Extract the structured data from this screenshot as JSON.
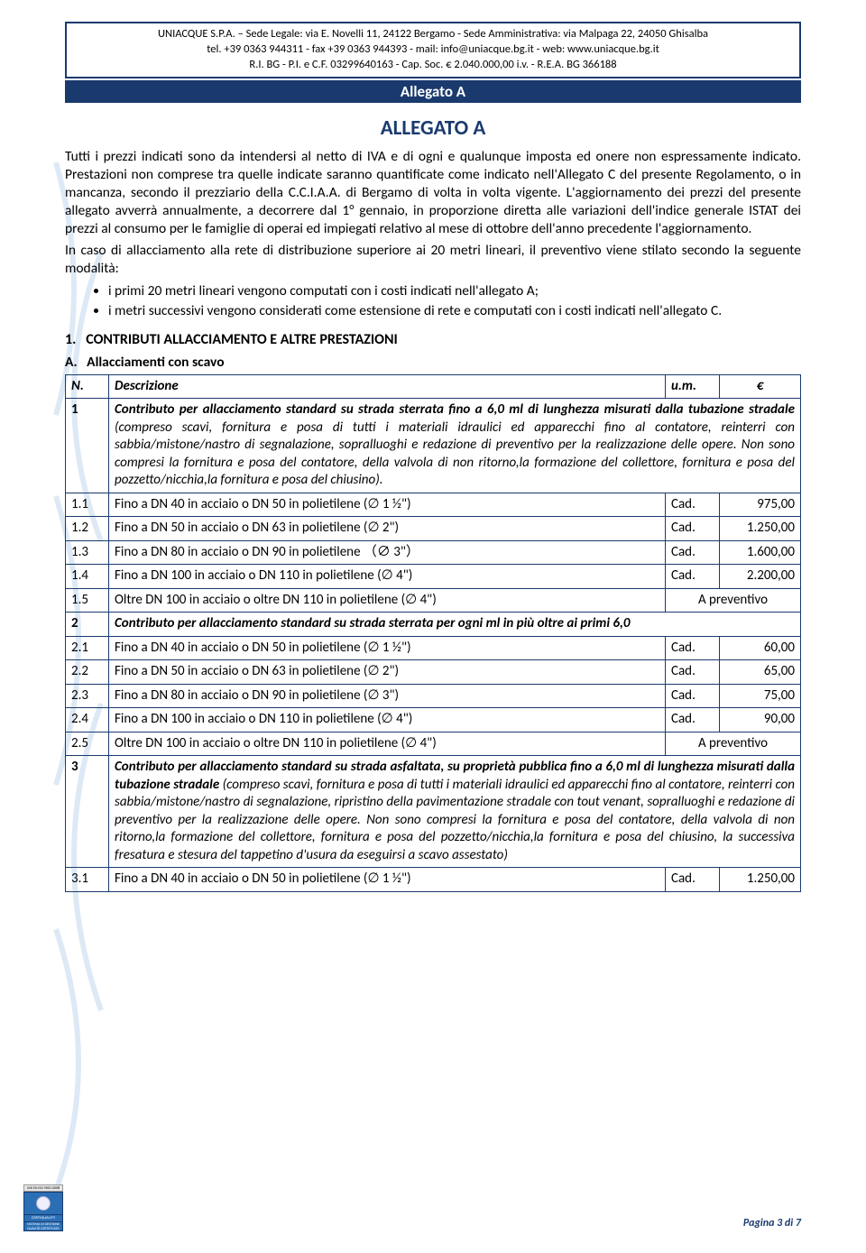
{
  "header": {
    "line1": "UNIACQUE S.P.A. – Sede Legale: via E. Novelli 11, 24122 Bergamo - Sede Amministrativa: via Malpaga 22, 24050 Ghisalba",
    "line2": "tel. +39 0363 944311 - fax +39 0363 944393 - mail: info@uniacque.bg.it - web: www.uniacque.bg.it",
    "line3": "R.I. BG - P.I. e C.F. 03299640163 - Cap. Soc. € 2.040.000,00 i.v. - R.E.A. BG 366188"
  },
  "banner": "Allegato A",
  "title": "ALLEGATO A",
  "para1": "Tutti i prezzi indicati sono da intendersi al netto di IVA e di ogni e qualunque imposta ed onere non espressamente indicato. Prestazioni non comprese tra quelle indicate saranno quantificate come indicato nell'Allegato C del presente Regolamento, o in mancanza, secondo il prezziario della C.C.I.A.A. di Bergamo di volta in volta vigente. L'aggiornamento dei prezzi del presente allegato avverrà annualmente, a decorrere dal 1° gennaio, in proporzione diretta alle variazioni dell'indice generale ISTAT dei prezzi al consumo per le famiglie di operai ed impiegati relativo al mese di ottobre dell'anno precedente l'aggiornamento.",
  "para2": "In caso di allacciamento alla rete di distribuzione superiore ai 20 metri lineari, il preventivo viene stilato secondo la seguente modalità:",
  "bullets": [
    "i primi 20 metri lineari vengono computati con i costi indicati nell'allegato A;",
    "i metri successivi vengono considerati come estensione di rete e computati con i costi indicati nell'allegato C."
  ],
  "section1": {
    "num": "1.",
    "title": "CONTRIBUTI ALLACCIAMENTO E ALTRE PRESTAZIONI"
  },
  "subsectionA": {
    "letter": "A.",
    "title": "Allacciamenti con scavo"
  },
  "table": {
    "headers": {
      "n": "N.",
      "desc": "Descrizione",
      "um": "u.m.",
      "eur": "€"
    },
    "rows": [
      {
        "n": "1",
        "desc_bold": "Contributo per allacciamento standard su strada sterrata fino a 6,0 ml di lunghezza misurati dalla tubazione stradale",
        "desc_rest": " (compreso scavi, fornitura e posa di tutti i materiali idraulici ed apparecchi fino al contatore, reinterri con sabbia/mistone/nastro di segnalazione, sopralluoghi e redazione di preventivo per la realizzazione delle opere. Non sono compresi la fornitura e posa del contatore, della valvola di non ritorno,la formazione del collettore, fornitura e posa del pozzetto/nicchia,la fornitura e posa del chiusino).",
        "span": true,
        "italic": true
      },
      {
        "n": "1.1",
        "desc": "Fino a DN 40 in acciaio o DN 50 in polietilene (∅ 1 ½\")",
        "um": "Cad.",
        "eur": "975,00"
      },
      {
        "n": "1.2",
        "desc": "Fino a DN 50 in acciaio o DN 63 in polietilene (∅ 2\")",
        "um": "Cad.",
        "eur": "1.250,00"
      },
      {
        "n": "1.3",
        "desc": "Fino a DN 80 in acciaio o DN 90 in polietilene （∅ 3\"）",
        "um": "Cad.",
        "eur": "1.600,00"
      },
      {
        "n": "1.4",
        "desc": "Fino a DN 100 in acciaio o DN 110 in polietilene (∅ 4\")",
        "um": "Cad.",
        "eur": "2.200,00"
      },
      {
        "n": "1.5",
        "desc": "Oltre DN 100 in acciaio o oltre DN 110 in polietilene (∅ 4\")",
        "merged_val": "A preventivo"
      },
      {
        "n": "2",
        "desc_bold": "Contributo per allacciamento standard su strada sterrata per ogni ml in più oltre ai primi 6,0",
        "span": true,
        "italic": true
      },
      {
        "n": "2.1",
        "desc": "Fino a DN 40 in acciaio o DN 50 in polietilene (∅ 1 ½\")",
        "um": "Cad.",
        "eur": "60,00"
      },
      {
        "n": "2.2",
        "desc": "Fino a DN 50 in acciaio o DN 63 in polietilene (∅ 2\")",
        "um": "Cad.",
        "eur": "65,00"
      },
      {
        "n": "2.3",
        "desc": "Fino a DN 80 in acciaio o DN 90 in polietilene (∅ 3\")",
        "um": "Cad.",
        "eur": "75,00"
      },
      {
        "n": "2.4",
        "desc": "Fino a DN 100 in acciaio o DN 110 in polietilene (∅ 4\")",
        "um": "Cad.",
        "eur": "90,00"
      },
      {
        "n": "2.5",
        "desc": "Oltre DN 100 in acciaio o oltre DN 110 in polietilene (∅ 4\")",
        "merged_val": "A preventivo"
      },
      {
        "n": "3",
        "desc_bold": "Contributo per allacciamento standard su strada asfaltata, su proprietà pubblica fino a 6,0 ml di lunghezza misurati dalla tubazione stradale",
        "desc_rest": " (compreso scavi, fornitura e posa di tutti i materiali idraulici ed apparecchi fino al contatore, reinterri con sabbia/mistone/nastro di segnalazione, ripristino della pavimentazione stradale con tout venant, sopralluoghi e redazione di preventivo per la realizzazione delle opere. Non sono compresi la fornitura e posa del contatore, della valvola di non ritorno,la formazione del collettore, fornitura e posa del pozzetto/nicchia,la fornitura e posa del chiusino, la successiva fresatura e stesura del tappetino d'usura da eseguirsi a scavo assestato)",
        "span": true,
        "italic": true
      },
      {
        "n": "3.1",
        "desc": "Fino a DN 40 in acciaio o DN 50 in polietilene (∅ 1 ½\")",
        "um": "Cad.",
        "eur": "1.250,00"
      }
    ]
  },
  "footer": "Pagina 3 di 7"
}
